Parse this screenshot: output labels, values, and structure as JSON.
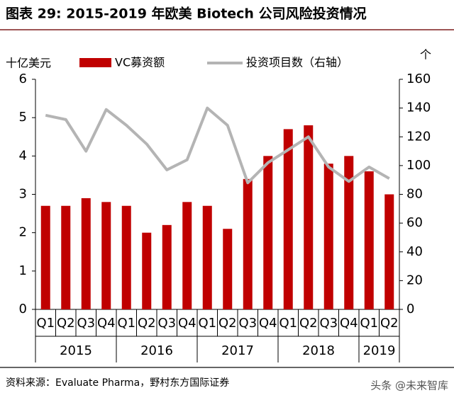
{
  "chart_data": {
    "type": "bar_line",
    "title": "图表 29: 2015-2019 年欧美 Biotech 公司风险投资情况",
    "y_label": "十亿美元",
    "y2_label": "个",
    "categories": [
      "Q1",
      "Q2",
      "Q3",
      "Q4",
      "Q1",
      "Q2",
      "Q3",
      "Q4",
      "Q1",
      "Q2",
      "Q3",
      "Q4",
      "Q1",
      "Q2",
      "Q3",
      "Q4",
      "Q1",
      "Q2"
    ],
    "years": [
      "2015",
      "2016",
      "2017",
      "2018",
      "2019"
    ],
    "series": [
      {
        "name": "VC募资额",
        "type": "bar",
        "color": "#c00000",
        "values": [
          2.7,
          2.7,
          2.9,
          2.8,
          2.7,
          2.0,
          2.2,
          2.8,
          2.7,
          2.1,
          3.4,
          4.0,
          4.7,
          4.8,
          3.8,
          4.0,
          3.6,
          3.0
        ]
      },
      {
        "name": "投资项目数（右轴）",
        "type": "line",
        "axis": "y2",
        "color": "#b4b4b4",
        "values": [
          135,
          132,
          110,
          139,
          128,
          115,
          97,
          104,
          140,
          128,
          88,
          102,
          111,
          120,
          99,
          89,
          99,
          91
        ]
      }
    ],
    "ylim": [
      0,
      6
    ],
    "yticks": [
      0,
      1,
      2,
      3,
      4,
      5,
      6
    ],
    "y2lim": [
      0,
      160
    ],
    "y2ticks": [
      0,
      20,
      40,
      60,
      80,
      100,
      120,
      140,
      160
    ],
    "source": "资料来源：Evaluate Pharma，野村东方国际证券",
    "watermark": "头条 @未来智库"
  }
}
